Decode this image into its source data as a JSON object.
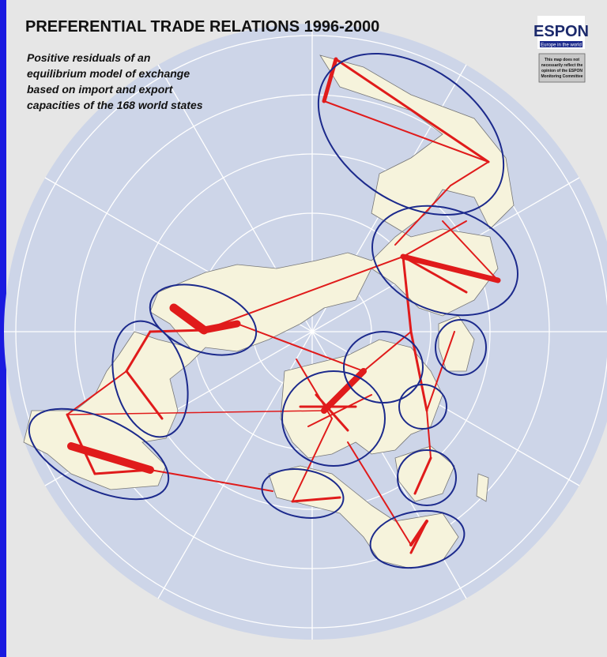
{
  "header": {
    "title": "PREFERENTIAL TRADE RELATIONS 1996-2000",
    "subtitle_lines": [
      "Positive residuals of an",
      "equilibrium  model of exchange",
      "based on import and export",
      "capacities of the 168 world states"
    ]
  },
  "logo": {
    "name": "ESPON",
    "tagline": "Europe in the world"
  },
  "disclaimer": {
    "lines": [
      "This map does not",
      "necessarily reflect the",
      "opinion of the ESPON",
      "Monitoring Committee"
    ]
  }
}
